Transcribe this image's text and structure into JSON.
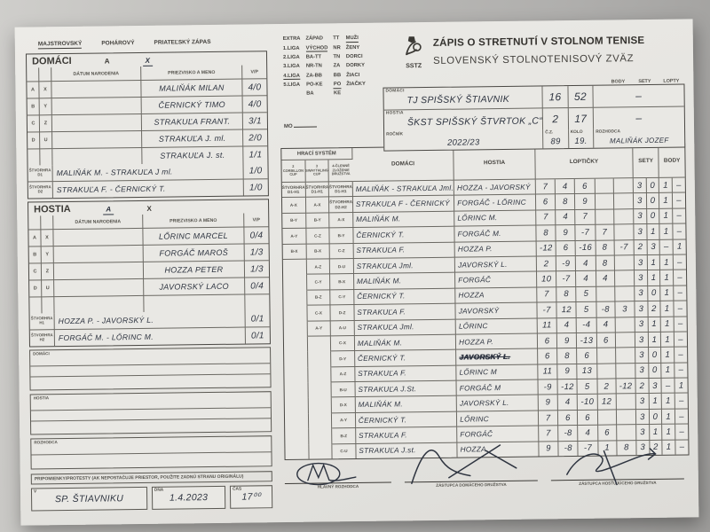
{
  "doc": {
    "match_types": [
      "MAJSTROVSKÝ",
      "POHÁROVÝ",
      "PRIATEĽSKÝ ZÁPAS"
    ],
    "selected_type": "MAJSTROVSKÝ"
  },
  "brand": {
    "title": "ZÁPIS O STRETNUTÍ V STOLNOM TENISE",
    "subtitle": "SLOVENSKÝ STOLNOTENISOVÝ ZVÄZ",
    "logo": "SSTZ"
  },
  "league": {
    "rows": [
      {
        "c1": "EXTRA",
        "c2": "ZÁPAD",
        "c3": "TT",
        "c4": "MUŽI"
      },
      {
        "c1": "1.LIGA",
        "c2": "VÝCHOD",
        "c3": "NR",
        "c4": "ŽENY"
      },
      {
        "c1": "2.LIGA",
        "c2": "BA-TT",
        "c3": "TN",
        "c4": "DORCI"
      },
      {
        "c1": "3.LIGA",
        "c2": "NR-TN",
        "c3": "ZA",
        "c4": "DORKY"
      },
      {
        "c1": "4.LIGA",
        "c2": "ZA-BB",
        "c3": "BB",
        "c4": "ŽIACI"
      },
      {
        "c1": "5.LIGA",
        "c2": "PO-KE",
        "c3": "PO",
        "c4": "ŽIAČKY"
      },
      {
        "c1": "",
        "c2": "BA",
        "c3": "KE",
        "c4": ""
      }
    ],
    "underlined": [
      "4.LIGA",
      "VÝCHOD",
      "PO",
      "MUŽI"
    ],
    "mo": "MO"
  },
  "score": {
    "body": "BODY",
    "sety": "SETY",
    "lopty": "LOPTY",
    "rows": [
      {
        "label": "DOMÁCI",
        "team": "TJ SPIŠSKÝ ŠTIAVNIK",
        "body": "16",
        "sety": "52",
        "lopty": "–"
      },
      {
        "label": "HOSTIA",
        "team": "ŠKST SPIŠSKÝ ŠTVRTOK „C“",
        "body": "2",
        "sety": "17",
        "lopty": "–"
      }
    ]
  },
  "meta": {
    "rocnik_label": "ROČNÍK",
    "rocnik": "2022/23",
    "cz_label": "Č.Z.",
    "cz": "89",
    "kolo_label": "KOLO",
    "kolo": "19.",
    "rozhodca_label": "ROZHODCA",
    "rozhodca": "MALIŇÁK  JOZEF"
  },
  "domaci": {
    "title": "DOMÁCI",
    "a": "A",
    "x": "X",
    "h_dob": "DÁTUM NARODENIA",
    "h_name": "PRIEZVISKO A MENO",
    "h_vp": "V/P",
    "players": [
      {
        "l1": "A",
        "l2": "X",
        "dob": "",
        "name": "MALIŇÁK MILAN",
        "vp": "4/0"
      },
      {
        "l1": "B",
        "l2": "Y",
        "dob": "",
        "name": "ČERNICKÝ TIMO",
        "vp": "4/0"
      },
      {
        "l1": "C",
        "l2": "Z",
        "dob": "",
        "name": "STRAKUĽA FRANT.",
        "vp": "3/1"
      },
      {
        "l1": "D",
        "l2": "U",
        "dob": "",
        "name": "STRAKUĽA J. ml.",
        "vp": "2/0"
      },
      {
        "l1": "",
        "l2": "",
        "dob": "",
        "name": "STRAKUĽA J. st.",
        "vp": "1/1"
      }
    ],
    "doubles": [
      {
        "lab": "ŠTVORHRA D1",
        "name": "MALIŇÁK M. - STRAKUĽA J ml.",
        "vp": "1/0"
      },
      {
        "lab": "ŠTVORHRA D2",
        "name": "STRAKUĽA F. - ČERNICKÝ T.",
        "vp": "1/0"
      }
    ]
  },
  "hostia": {
    "title": "HOSTIA",
    "a": "A",
    "x": "X",
    "h_dob": "DÁTUM NARODENIA",
    "h_name": "PRIEZVISKO A MENO",
    "h_vp": "V/P",
    "players": [
      {
        "l1": "A",
        "l2": "X",
        "dob": "",
        "name": "LŐRINC MARCEL",
        "vp": "0/4"
      },
      {
        "l1": "B",
        "l2": "Y",
        "dob": "",
        "name": "FORGÁČ MAROŠ",
        "vp": "1/3"
      },
      {
        "l1": "C",
        "l2": "Z",
        "dob": "",
        "name": "HOZZA PETER",
        "vp": "1/3"
      },
      {
        "l1": "D",
        "l2": "U",
        "dob": "",
        "name": "JAVORSKÝ LACO",
        "vp": "0/4"
      },
      {
        "l1": "",
        "l2": "",
        "dob": "",
        "name": "",
        "vp": ""
      }
    ],
    "doubles": [
      {
        "lab": "ŠTVORHRA H1",
        "name": "HOZZA P. - JAVORSKÝ L.",
        "vp": "0/1"
      },
      {
        "lab": "ŠTVORHRA H2",
        "name": "FORGÁČ M. - LŐRINC M.",
        "vp": "0/1"
      }
    ]
  },
  "match": {
    "hraci": "HRACÍ SYSTÉM",
    "sys1": "2 CORBILLON CUP",
    "sys2": "3 SWAYTHLING CUP",
    "sys3": "4-ČLENNÉ ZLOŽENIE DRUŽSTVA",
    "domaci": "DOMÁCI",
    "hostia": "HOSTIA",
    "lopticky": "LOPTIČKY",
    "sety": "SETY",
    "body": "BODY",
    "rows": [
      {
        "c1": "ŠTVORHRA D1-H1",
        "c2": "ŠTVORHRA D1-H1",
        "c3": "ŠTVORHRA D1-H1",
        "d": "MALIŇÁK - STRAKUĽA Jml.",
        "h": "HOZZA - JAVORSKÝ",
        "b1": "7",
        "b2": "4",
        "b3": "6",
        "b4": "",
        "b5": "",
        "sd": "3",
        "sh": "0",
        "bd": "1",
        "bh": "–"
      },
      {
        "c1": "A-X",
        "c2": "A-X",
        "c3": "ŠTVORHRA D2-H2",
        "d": "STRAKUĽA F - ČERNICKÝ",
        "h": "FORGÁČ - LŐRINC",
        "b1": "6",
        "b2": "8",
        "b3": "9",
        "b4": "",
        "b5": "",
        "sd": "3",
        "sh": "0",
        "bd": "1",
        "bh": "–"
      },
      {
        "c1": "B-Y",
        "c2": "B-Y",
        "c3": "A-X",
        "d": "MALIŇÁK M.",
        "h": "LŐRINC M.",
        "b1": "7",
        "b2": "4",
        "b3": "7",
        "b4": "",
        "b5": "",
        "sd": "3",
        "sh": "0",
        "bd": "1",
        "bh": "–"
      },
      {
        "c1": "A-Y",
        "c2": "C-Z",
        "c3": "B-Y",
        "d": "ČERNICKÝ T.",
        "h": "FORGÁČ M.",
        "b1": "8",
        "b2": "9",
        "b3": "-7",
        "b4": "7",
        "b5": "",
        "sd": "3",
        "sh": "1",
        "bd": "1",
        "bh": "–"
      },
      {
        "c1": "B-X",
        "c2": "B-X",
        "c3": "C-Z",
        "d": "STRAKUĽA F.",
        "h": "HOZZA P.",
        "b1": "-12",
        "b2": "6",
        "b3": "-16",
        "b4": "8",
        "b5": "-7",
        "sd": "2",
        "sh": "3",
        "bd": "–",
        "bh": "1"
      },
      {
        "c1": "",
        "c2": "A-Z",
        "c3": "D-U",
        "d": "STRAKUĽA Jml.",
        "h": "JAVORSKÝ L.",
        "b1": "2",
        "b2": "-9",
        "b3": "4",
        "b4": "8",
        "b5": "",
        "sd": "3",
        "sh": "1",
        "bd": "1",
        "bh": "–"
      },
      {
        "c1": "",
        "c2": "C-Y",
        "c3": "B-X",
        "d": "MALIŇÁK M.",
        "h": "FORGÁČ",
        "b1": "10",
        "b2": "-7",
        "b3": "4",
        "b4": "4",
        "b5": "",
        "sd": "3",
        "sh": "1",
        "bd": "1",
        "bh": "–"
      },
      {
        "c1": "",
        "c2": "B-Z",
        "c3": "C-Y",
        "d": "ČERNICKÝ T.",
        "h": "HOZZA",
        "b1": "7",
        "b2": "8",
        "b3": "5",
        "b4": "",
        "b5": "",
        "sd": "3",
        "sh": "0",
        "bd": "1",
        "bh": "–"
      },
      {
        "c1": "",
        "c2": "C-X",
        "c3": "D-Z",
        "d": "STRAKUĽA F.",
        "h": "JAVORSKÝ",
        "b1": "-7",
        "b2": "12",
        "b3": "5",
        "b4": "-8",
        "b5": "3",
        "sd": "3",
        "sh": "2",
        "bd": "1",
        "bh": "–"
      },
      {
        "c1": "",
        "c2": "A-Y",
        "c3": "A-U",
        "d": "STRAKUĽA Jml.",
        "h": "LŐRINC",
        "b1": "11",
        "b2": "4",
        "b3": "-4",
        "b4": "4",
        "b5": "",
        "sd": "3",
        "sh": "1",
        "bd": "1",
        "bh": "–"
      },
      {
        "c1": "",
        "c2": "",
        "c3": "C-X",
        "d": "MALIŇÁK M.",
        "h": "HOZZA P.",
        "b1": "6",
        "b2": "9",
        "b3": "-13",
        "b4": "6",
        "b5": "",
        "sd": "3",
        "sh": "1",
        "bd": "1",
        "bh": "–"
      },
      {
        "c1": "",
        "c2": "",
        "c3": "D-Y",
        "d": "ČERNICKÝ T.",
        "h": "JAVORSKÝ L.",
        "b1": "6",
        "b2": "8",
        "b3": "6",
        "b4": "",
        "b5": "",
        "sd": "3",
        "sh": "0",
        "bd": "1",
        "bh": "–"
      },
      {
        "c1": "",
        "c2": "",
        "c3": "A-Z",
        "d": "STRAKUĽA F.",
        "h": "LŐRINC M",
        "b1": "11",
        "b2": "9",
        "b3": "13",
        "b4": "",
        "b5": "",
        "sd": "3",
        "sh": "0",
        "bd": "1",
        "bh": "–"
      },
      {
        "c1": "",
        "c2": "",
        "c3": "B-U",
        "d": "STRAKUĽA J.St.",
        "h": "FORGÁČ M",
        "b1": "-9",
        "b2": "-12",
        "b3": "5",
        "b4": "2",
        "b5": "-12",
        "sd": "2",
        "sh": "3",
        "bd": "–",
        "bh": "1"
      },
      {
        "c1": "",
        "c2": "",
        "c3": "D-X",
        "d": "MALIŇÁK M.",
        "h": "JAVORSKÝ L.",
        "b1": "9",
        "b2": "4",
        "b3": "-10",
        "b4": "12",
        "b5": "",
        "sd": "3",
        "sh": "1",
        "bd": "1",
        "bh": "–"
      },
      {
        "c1": "",
        "c2": "",
        "c3": "A-Y",
        "d": "ČERNICKÝ T.",
        "h": "LŐRINC",
        "b1": "7",
        "b2": "6",
        "b3": "6",
        "b4": "",
        "b5": "",
        "sd": "3",
        "sh": "0",
        "bd": "1",
        "bh": "–"
      },
      {
        "c1": "",
        "c2": "",
        "c3": "B-Z",
        "d": "STRAKUĽA F.",
        "h": "FORGÁČ",
        "b1": "7",
        "b2": "-8",
        "b3": "4",
        "b4": "6",
        "b5": "",
        "sd": "3",
        "sh": "1",
        "bd": "1",
        "bh": "–"
      },
      {
        "c1": "",
        "c2": "",
        "c3": "C-U",
        "d": "STRAKUĽA J.st.",
        "h": "HOZZA",
        "b1": "9",
        "b2": "-8",
        "b3": "-7",
        "b4": "1",
        "b5": "8",
        "sd": "3",
        "sh": "2",
        "bd": "1",
        "bh": "–"
      }
    ]
  },
  "notes": {
    "domaci": "DOMÁCI",
    "hostia": "HOSTIA",
    "rozhodca": "ROZHODCA",
    "pripomienky": "PRIPOMIENKY/PROTESTY (AK NEPOSTAČUJE PRIESTOR, POUŽITE ZADNÚ STRANU ORIGINÁLU)"
  },
  "footer": {
    "v": "V",
    "place": "SP. ŠTIAVNIKU",
    "dna": "DŇA",
    "date": "1.4.2023",
    "cas": "ČAS",
    "time": "17⁰⁰"
  },
  "signatures": [
    {
      "label": "HLAVNÝ ROZHODCA"
    },
    {
      "label": "ZÁSTUPCA DOMÁCEHO DRUŽSTVA"
    },
    {
      "label": "ZÁSTUPCA HOSŤUJÚCEHO DRUŽSTVA"
    }
  ]
}
